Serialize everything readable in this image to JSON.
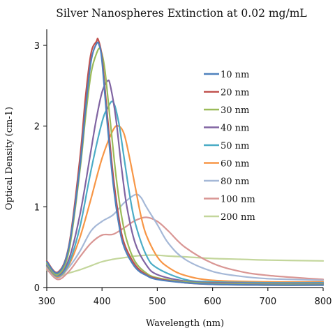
{
  "chart_data": {
    "type": "line",
    "title": "Silver Nanospheres Extinction at 0.02 mg/mL",
    "xlabel": "Wavelength (nm)",
    "ylabel": "Optical Density (cm-1)",
    "xlim": [
      300,
      800
    ],
    "ylim": [
      0,
      3.2
    ],
    "xticks": [
      300,
      400,
      500,
      600,
      700,
      800
    ],
    "yticks": [
      0,
      1,
      2,
      3
    ],
    "grid": false,
    "legend_position": "right",
    "series": [
      {
        "name": "10 nm",
        "color": "#4f81bd",
        "x": [
          300,
          320,
          340,
          360,
          370,
          380,
          390,
          395,
          400,
          410,
          420,
          430,
          440,
          460,
          480,
          500,
          550,
          600,
          700,
          800
        ],
        "y": [
          0.32,
          0.18,
          0.5,
          1.5,
          2.2,
          2.8,
          3.02,
          3.0,
          2.8,
          2.0,
          1.3,
          0.8,
          0.5,
          0.25,
          0.15,
          0.1,
          0.06,
          0.04,
          0.03,
          0.03
        ]
      },
      {
        "name": "20 nm",
        "color": "#c0504d",
        "x": [
          300,
          320,
          340,
          360,
          370,
          380,
          390,
          393,
          400,
          410,
          420,
          430,
          440,
          460,
          480,
          500,
          550,
          600,
          700,
          800
        ],
        "y": [
          0.33,
          0.19,
          0.52,
          1.6,
          2.35,
          2.9,
          3.05,
          3.07,
          2.85,
          2.1,
          1.4,
          0.88,
          0.55,
          0.28,
          0.16,
          0.11,
          0.06,
          0.04,
          0.03,
          0.03
        ]
      },
      {
        "name": "30 nm",
        "color": "#9bbb59",
        "x": [
          300,
          320,
          340,
          360,
          370,
          380,
          390,
          397,
          405,
          415,
          425,
          435,
          445,
          460,
          480,
          500,
          550,
          600,
          700,
          800
        ],
        "y": [
          0.3,
          0.16,
          0.45,
          1.45,
          2.1,
          2.65,
          2.9,
          2.95,
          2.7,
          2.05,
          1.4,
          0.9,
          0.58,
          0.32,
          0.18,
          0.12,
          0.07,
          0.05,
          0.04,
          0.04
        ]
      },
      {
        "name": "40 nm",
        "color": "#8064a2",
        "x": [
          300,
          320,
          340,
          360,
          380,
          390,
          400,
          410,
          415,
          425,
          435,
          445,
          460,
          480,
          500,
          550,
          600,
          700,
          800
        ],
        "y": [
          0.28,
          0.15,
          0.35,
          0.9,
          1.7,
          2.1,
          2.42,
          2.56,
          2.5,
          2.1,
          1.5,
          1.0,
          0.55,
          0.28,
          0.16,
          0.08,
          0.06,
          0.05,
          0.05
        ]
      },
      {
        "name": "50 nm",
        "color": "#4bacc6",
        "x": [
          300,
          320,
          340,
          360,
          380,
          400,
          410,
          420,
          430,
          440,
          450,
          460,
          480,
          500,
          550,
          600,
          700,
          800
        ],
        "y": [
          0.27,
          0.14,
          0.3,
          0.75,
          1.45,
          2.05,
          2.22,
          2.3,
          2.05,
          1.6,
          1.15,
          0.8,
          0.4,
          0.24,
          0.1,
          0.07,
          0.06,
          0.06
        ]
      },
      {
        "name": "60 nm",
        "color": "#f79646",
        "x": [
          300,
          320,
          340,
          360,
          380,
          400,
          420,
          430,
          440,
          450,
          460,
          470,
          480,
          500,
          520,
          550,
          600,
          700,
          800
        ],
        "y": [
          0.26,
          0.13,
          0.28,
          0.62,
          1.1,
          1.6,
          1.95,
          2.0,
          1.9,
          1.6,
          1.25,
          0.9,
          0.65,
          0.38,
          0.25,
          0.15,
          0.09,
          0.07,
          0.07
        ]
      },
      {
        "name": "80 nm",
        "color": "#a5b8d7",
        "x": [
          300,
          320,
          340,
          360,
          380,
          400,
          420,
          440,
          460,
          470,
          480,
          500,
          520,
          550,
          600,
          650,
          700,
          800
        ],
        "y": [
          0.25,
          0.12,
          0.25,
          0.45,
          0.7,
          0.82,
          0.9,
          1.05,
          1.15,
          1.12,
          1.0,
          0.78,
          0.55,
          0.35,
          0.2,
          0.14,
          0.11,
          0.09
        ]
      },
      {
        "name": "100 nm",
        "color": "#d99694",
        "x": [
          300,
          320,
          340,
          360,
          380,
          400,
          420,
          440,
          460,
          480,
          500,
          520,
          550,
          600,
          650,
          700,
          800
        ],
        "y": [
          0.23,
          0.1,
          0.2,
          0.38,
          0.55,
          0.65,
          0.66,
          0.74,
          0.83,
          0.87,
          0.82,
          0.7,
          0.5,
          0.3,
          0.2,
          0.15,
          0.1
        ]
      },
      {
        "name": "200 nm",
        "color": "#c3d69b",
        "x": [
          300,
          320,
          340,
          360,
          380,
          400,
          420,
          440,
          460,
          480,
          500,
          520,
          550,
          600,
          650,
          700,
          800
        ],
        "y": [
          0.22,
          0.14,
          0.18,
          0.22,
          0.27,
          0.32,
          0.35,
          0.37,
          0.39,
          0.4,
          0.4,
          0.39,
          0.38,
          0.36,
          0.35,
          0.34,
          0.33
        ]
      }
    ]
  }
}
